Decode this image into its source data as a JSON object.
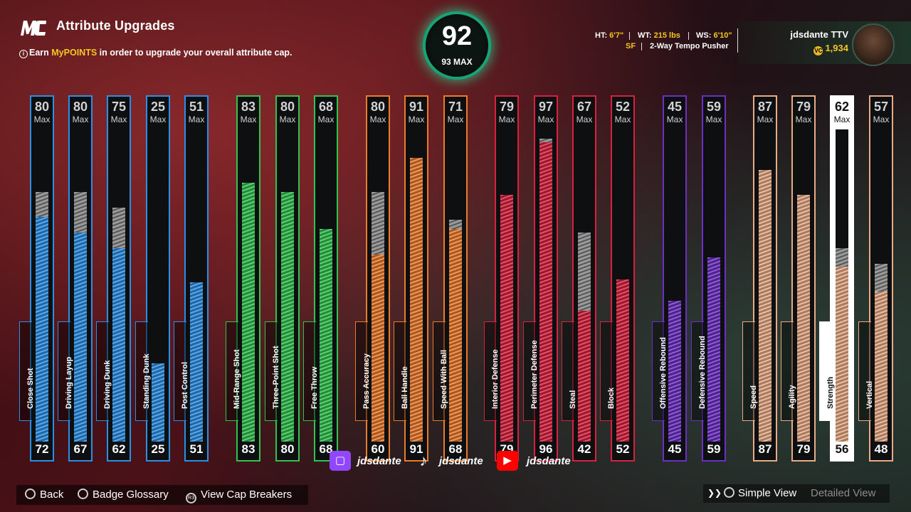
{
  "header": {
    "logo_text": "MC",
    "title": "Attribute Upgrades",
    "subtitle_prefix": "Earn ",
    "subtitle_accent": "MyPOINTS",
    "subtitle_suffix": " in order to upgrade your overall attribute cap."
  },
  "overall": {
    "value": "92",
    "max_label": "93 MAX",
    "color": "#16a376"
  },
  "bio": {
    "ht_label": "HT:",
    "ht_value": "6'7\"",
    "wt_label": "WT:",
    "wt_value": "215 lbs",
    "ws_label": "WS:",
    "ws_value": "6'10\"",
    "position": "SF",
    "archetype": "2-Way Tempo Pusher"
  },
  "profile": {
    "name": "jdsdante TTV",
    "vc": "1,934"
  },
  "colors": {
    "inside": "#2c8fe6",
    "shooting": "#31c24f",
    "playmaking": "#ec7a2b",
    "defense": "#d9213f",
    "rebounding": "#6c2ec4",
    "physical": "#e8ab86"
  },
  "max_label": "Max",
  "attributes": [
    {
      "name": "Close Shot",
      "group": "inside",
      "current": 72,
      "max": 80
    },
    {
      "name": "Driving Layup",
      "group": "inside",
      "current": 67,
      "max": 80
    },
    {
      "name": "Driving Dunk",
      "group": "inside",
      "current": 62,
      "max": 75
    },
    {
      "name": "Standing Dunk",
      "group": "inside",
      "current": 25,
      "max": 25
    },
    {
      "name": "Post Control",
      "group": "inside",
      "current": 51,
      "max": 51
    },
    {
      "name": "Mid-Range Shot",
      "group": "shooting",
      "current": 83,
      "max": 83
    },
    {
      "name": "Three-Point Shot",
      "group": "shooting",
      "current": 80,
      "max": 80
    },
    {
      "name": "Free Throw",
      "group": "shooting",
      "current": 68,
      "max": 68
    },
    {
      "name": "Pass Accuracy",
      "group": "playmaking",
      "current": 60,
      "max": 80
    },
    {
      "name": "Ball Handle",
      "group": "playmaking",
      "current": 91,
      "max": 91
    },
    {
      "name": "Speed With Ball",
      "group": "playmaking",
      "current": 68,
      "max": 71
    },
    {
      "name": "Interior Defense",
      "group": "defense",
      "current": 79,
      "max": 79
    },
    {
      "name": "Perimeter Defense",
      "group": "defense",
      "current": 96,
      "max": 97
    },
    {
      "name": "Steal",
      "group": "defense",
      "current": 42,
      "max": 67
    },
    {
      "name": "Block",
      "group": "defense",
      "current": 52,
      "max": 52
    },
    {
      "name": "Offensive Rebound",
      "group": "rebounding",
      "current": 45,
      "max": 45
    },
    {
      "name": "Defensive Rebound",
      "group": "rebounding",
      "current": 59,
      "max": 59
    },
    {
      "name": "Speed",
      "group": "physical",
      "current": 87,
      "max": 87
    },
    {
      "name": "Agility",
      "group": "physical",
      "current": 79,
      "max": 79
    },
    {
      "name": "Strength",
      "group": "physical",
      "current": 56,
      "max": 62,
      "selected": true
    },
    {
      "name": "Vertical",
      "group": "physical",
      "current": 48,
      "max": 57
    }
  ],
  "social": {
    "twitch_icon": "twitch-icon",
    "twitch_handle": "jdsdante",
    "tiktok_icon": "tiktok-icon",
    "tiktok_handle": "jdsdante",
    "youtube_icon": "youtube-icon",
    "youtube_handle": "jdsdante"
  },
  "footer": {
    "back_label": "Back",
    "glossary_label": "Badge Glossary",
    "r3_glyph": "R3",
    "cap_label": "View Cap Breakers"
  },
  "view_toggle": {
    "simple_label": "Simple View",
    "detailed_label": "Detailed View"
  }
}
